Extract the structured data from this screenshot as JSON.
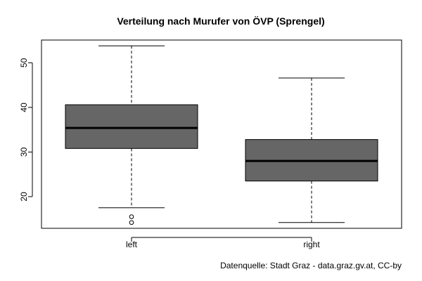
{
  "chart_data": {
    "type": "boxplot",
    "title": "Verteilung nach Murufer von ÖVP (Sprengel)",
    "xlabel": "",
    "ylabel": "",
    "categories": [
      "left",
      "right"
    ],
    "boxes": [
      {
        "category": "left",
        "whisker_low": 17.5,
        "q1": 30.8,
        "median": 35.4,
        "q3": 40.6,
        "whisker_high": 53.8,
        "outliers": [
          15.5,
          14.2
        ]
      },
      {
        "category": "right",
        "whisker_low": 14.2,
        "q1": 23.5,
        "median": 28.0,
        "q3": 32.8,
        "whisker_high": 46.6,
        "outliers": []
      }
    ],
    "ylim": [
      12.9,
      55.1
    ],
    "yticks": [
      20,
      30,
      40,
      50
    ],
    "box_color": "#666666",
    "grid": false,
    "caption": "Datenquelle: Stadt Graz - data.graz.gv.at, CC-by"
  }
}
